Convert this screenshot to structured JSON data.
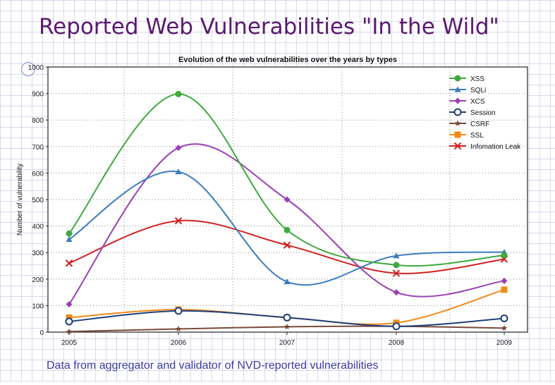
{
  "slide": {
    "title": "Reported Web Vulnerabilities \"In the Wild\"",
    "footnote": "Data from aggregator and validator of  NVD-reported vulnerabilities"
  },
  "chart_data": {
    "type": "line",
    "title": "Evolution of the web vulnerabilities over the years by types",
    "xlabel": "",
    "ylabel": "Number of vulnerability",
    "categories": [
      "2005",
      "2006",
      "2007",
      "2008",
      "2009"
    ],
    "ylim": [
      0,
      1000
    ],
    "yticks": [
      0,
      100,
      200,
      300,
      400,
      500,
      600,
      700,
      800,
      900,
      1000
    ],
    "grid": true,
    "legend_position": "top-right",
    "series": [
      {
        "name": "XSS",
        "color": "#3daa3d",
        "marker": "circle",
        "values": [
          372,
          898,
          385,
          253,
          290
        ]
      },
      {
        "name": "SQLi",
        "color": "#3a7dbf",
        "marker": "triangle",
        "values": [
          350,
          605,
          190,
          288,
          302
        ]
      },
      {
        "name": "XCS",
        "color": "#9a3fb5",
        "marker": "diamond",
        "values": [
          105,
          695,
          500,
          150,
          193
        ]
      },
      {
        "name": "Session",
        "color": "#1f3f7a",
        "marker": "open-circle",
        "values": [
          40,
          80,
          55,
          22,
          52
        ]
      },
      {
        "name": "CSRF",
        "color": "#7a4a3a",
        "marker": "star",
        "values": [
          2,
          12,
          20,
          22,
          15
        ]
      },
      {
        "name": "SSL",
        "color": "#f08a1a",
        "marker": "square",
        "values": [
          55,
          85,
          55,
          35,
          160
        ]
      },
      {
        "name": "Infomation Leak",
        "color": "#d42020",
        "marker": "x",
        "values": [
          260,
          420,
          328,
          222,
          275
        ]
      }
    ]
  }
}
